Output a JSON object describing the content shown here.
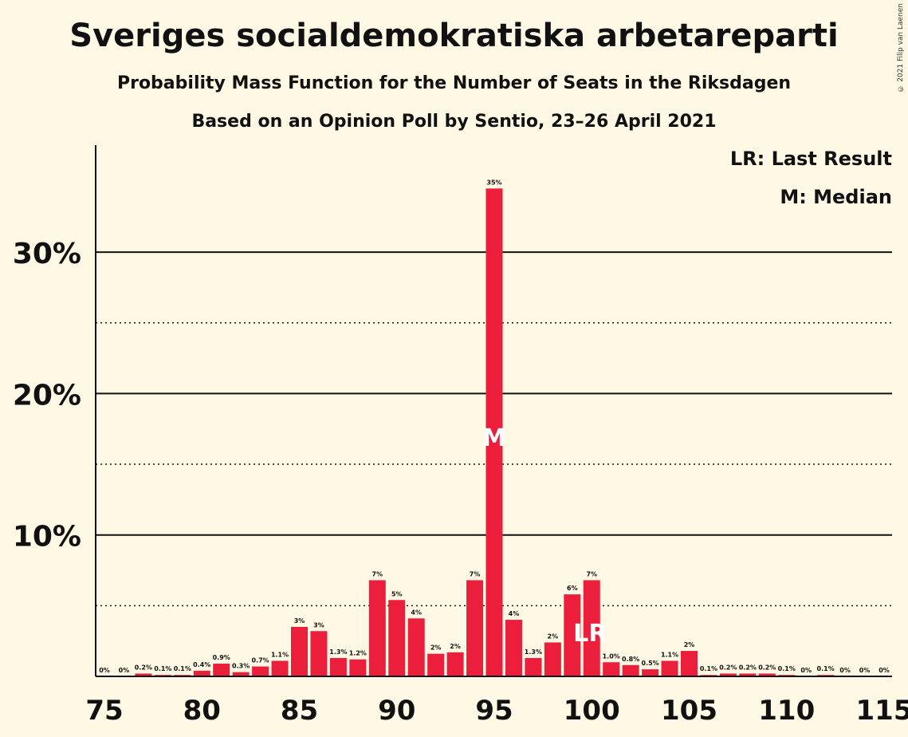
{
  "title": "Sveriges socialdemokratiska arbetareparti",
  "subtitle": "Probability Mass Function for the Number of Seats in the Riksdagen",
  "subtitle2": "Based on an Opinion Poll by Sentio, 23–26 April 2021",
  "copyright": "© 2021 Filip van Laenen",
  "legend": {
    "last_result": "LR: Last Result",
    "median": "M: Median"
  },
  "colors": {
    "bar": "#EB1E3B",
    "background": "#FFF8E4",
    "text": "#111111"
  },
  "chart_data": {
    "type": "bar",
    "x": [
      75,
      76,
      77,
      78,
      79,
      80,
      81,
      82,
      83,
      84,
      85,
      86,
      87,
      88,
      89,
      90,
      91,
      92,
      93,
      94,
      95,
      96,
      97,
      98,
      99,
      100,
      101,
      102,
      103,
      104,
      105,
      106,
      107,
      108,
      109,
      110,
      111,
      112,
      113,
      114,
      115
    ],
    "values": [
      0,
      0,
      0.2,
      0.1,
      0.1,
      0.4,
      0.9,
      0.3,
      0.7,
      1.1,
      3.5,
      3.2,
      1.3,
      1.2,
      6.8,
      5.4,
      4.1,
      1.6,
      1.7,
      6.8,
      34.5,
      4.0,
      1.3,
      2.4,
      5.8,
      6.8,
      1.0,
      0.8,
      0.5,
      1.1,
      1.8,
      0.1,
      0.2,
      0.2,
      0.2,
      0.1,
      0,
      0.1,
      0,
      0,
      0
    ],
    "labels": [
      "0%",
      "0%",
      "0.2%",
      "0.1%",
      "0.1%",
      "0.4%",
      "0.9%",
      "0.3%",
      "0.7%",
      "1.1%",
      "3%",
      "3%",
      "1.3%",
      "1.2%",
      "7%",
      "5%",
      "4%",
      "2%",
      "2%",
      "7%",
      "35%",
      "4%",
      "1.3%",
      "2%",
      "6%",
      "7%",
      "1.0%",
      "0.8%",
      "0.5%",
      "1.1%",
      "2%",
      "0.1%",
      "0.2%",
      "0.2%",
      "0.2%",
      "0.1%",
      "0%",
      "0.1%",
      "0%",
      "0%",
      "0%"
    ],
    "xticks": [
      75,
      80,
      85,
      90,
      95,
      100,
      105,
      110,
      115
    ],
    "yticks": [
      {
        "value": 10,
        "label": "10%"
      },
      {
        "value": 20,
        "label": "20%"
      },
      {
        "value": 30,
        "label": "30%"
      }
    ],
    "ydotted": [
      5,
      15,
      25
    ],
    "ylim": [
      0,
      37.5
    ],
    "median": 95,
    "last_result": 100,
    "median_marker": "M",
    "last_result_marker": "LR"
  }
}
